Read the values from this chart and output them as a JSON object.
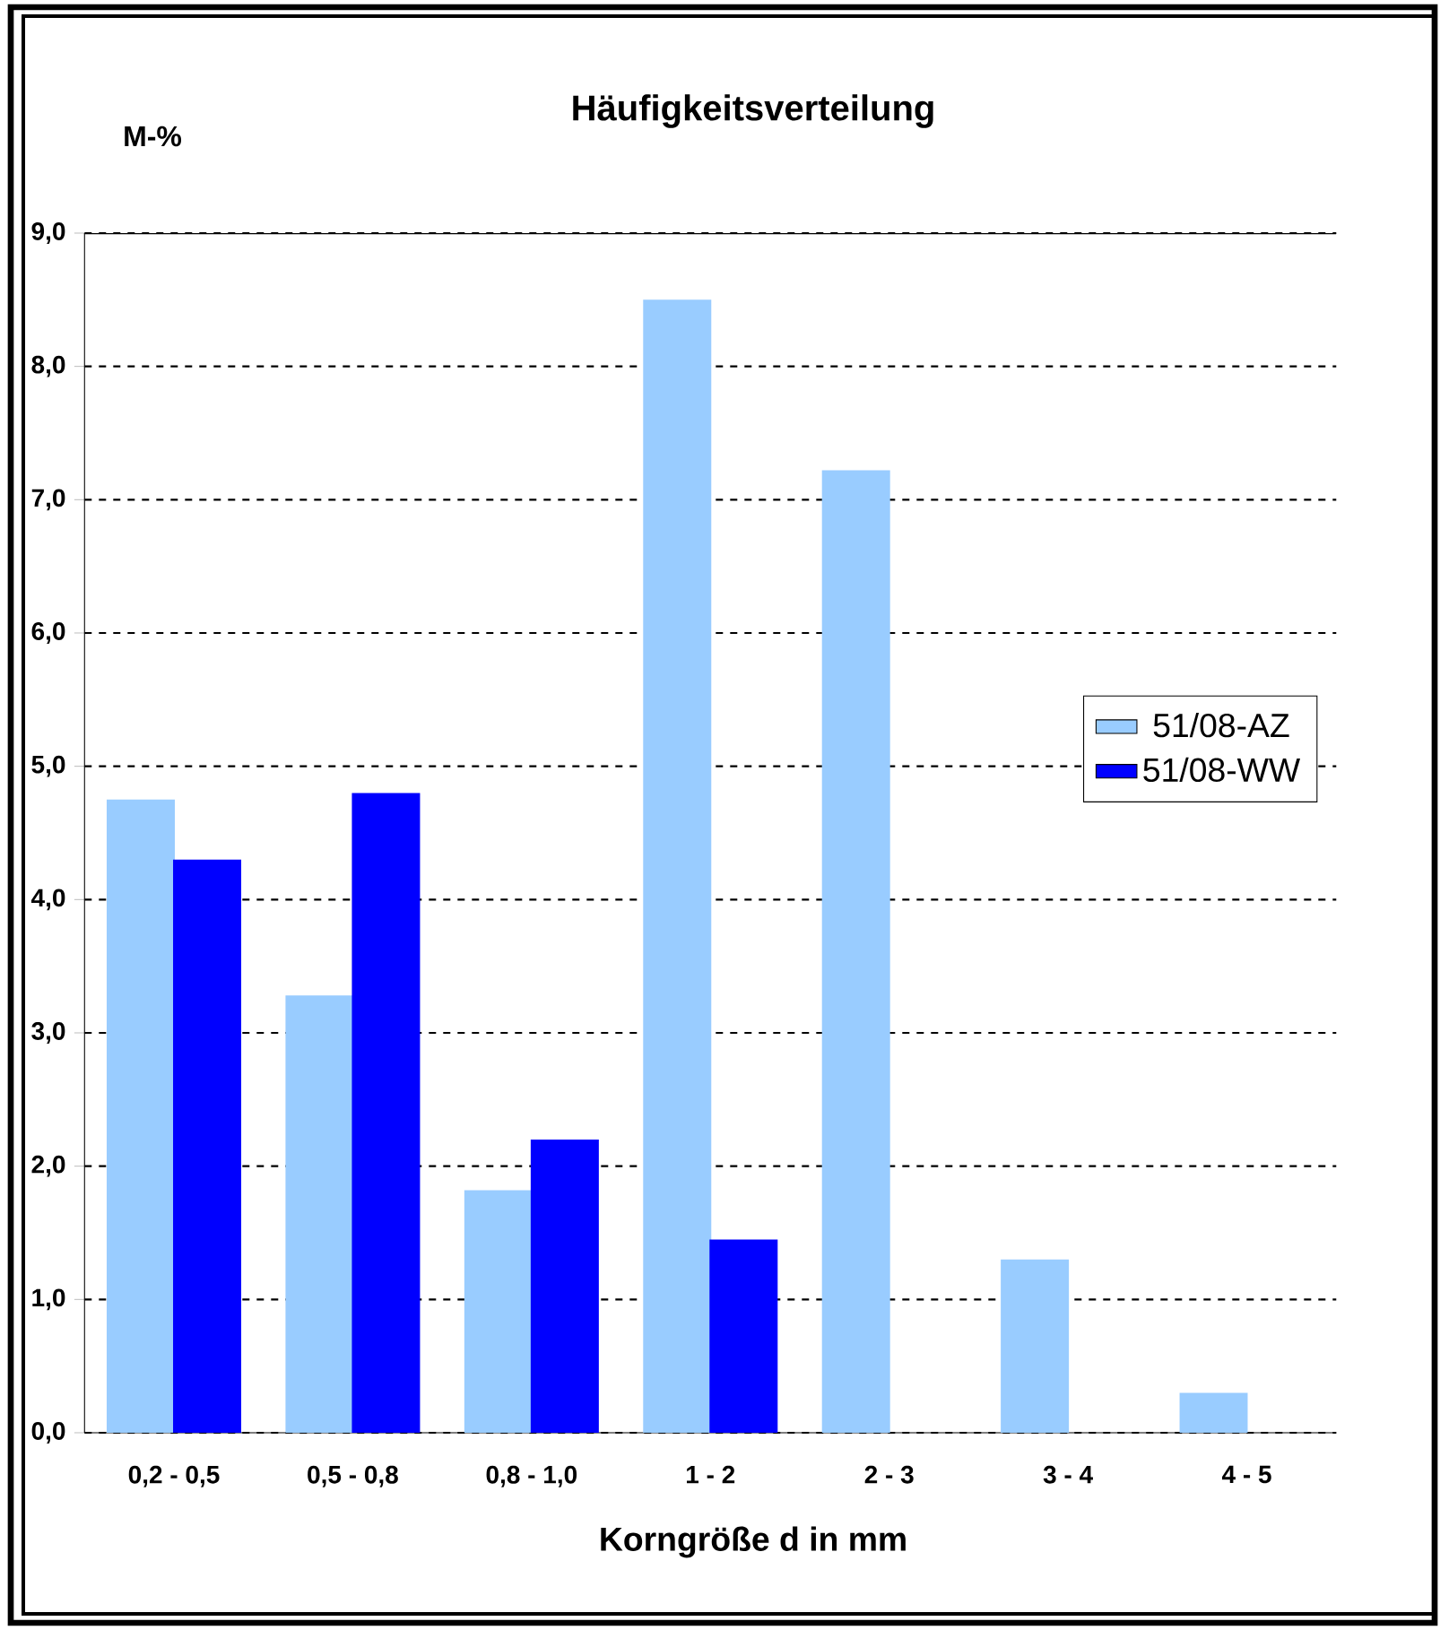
{
  "chart_data": {
    "type": "bar",
    "title": "Häufigkeitsverteilung",
    "xlabel": "Korngröße d in mm",
    "ylabel": "M-%",
    "categories": [
      "0,2 - 0,5",
      "0,5 - 0,8",
      "0,8 - 1,0",
      "1 - 2",
      "2 - 3",
      "3 - 4",
      "4 - 5"
    ],
    "series": [
      {
        "name": "51/08-AZ",
        "color": "#99ccff",
        "values": [
          4.75,
          3.28,
          1.82,
          8.5,
          7.22,
          1.3,
          0.3
        ]
      },
      {
        "name": "51/08-WW",
        "color": "#0000ff",
        "values": [
          4.3,
          4.8,
          2.2,
          1.45,
          null,
          null,
          null
        ]
      }
    ],
    "ylim": [
      0,
      9
    ],
    "yticks": [
      {
        "value": 0,
        "label": "0,0"
      },
      {
        "value": 1,
        "label": "1,0"
      },
      {
        "value": 2,
        "label": "2,0"
      },
      {
        "value": 3,
        "label": "3,0"
      },
      {
        "value": 4,
        "label": "4,0"
      },
      {
        "value": 5,
        "label": "5,0"
      },
      {
        "value": 6,
        "label": "6,0"
      },
      {
        "value": 7,
        "label": "7,0"
      },
      {
        "value": 8,
        "label": "8,0"
      },
      {
        "value": 9,
        "label": "9,0"
      }
    ],
    "grid": "y",
    "legend": "right"
  }
}
